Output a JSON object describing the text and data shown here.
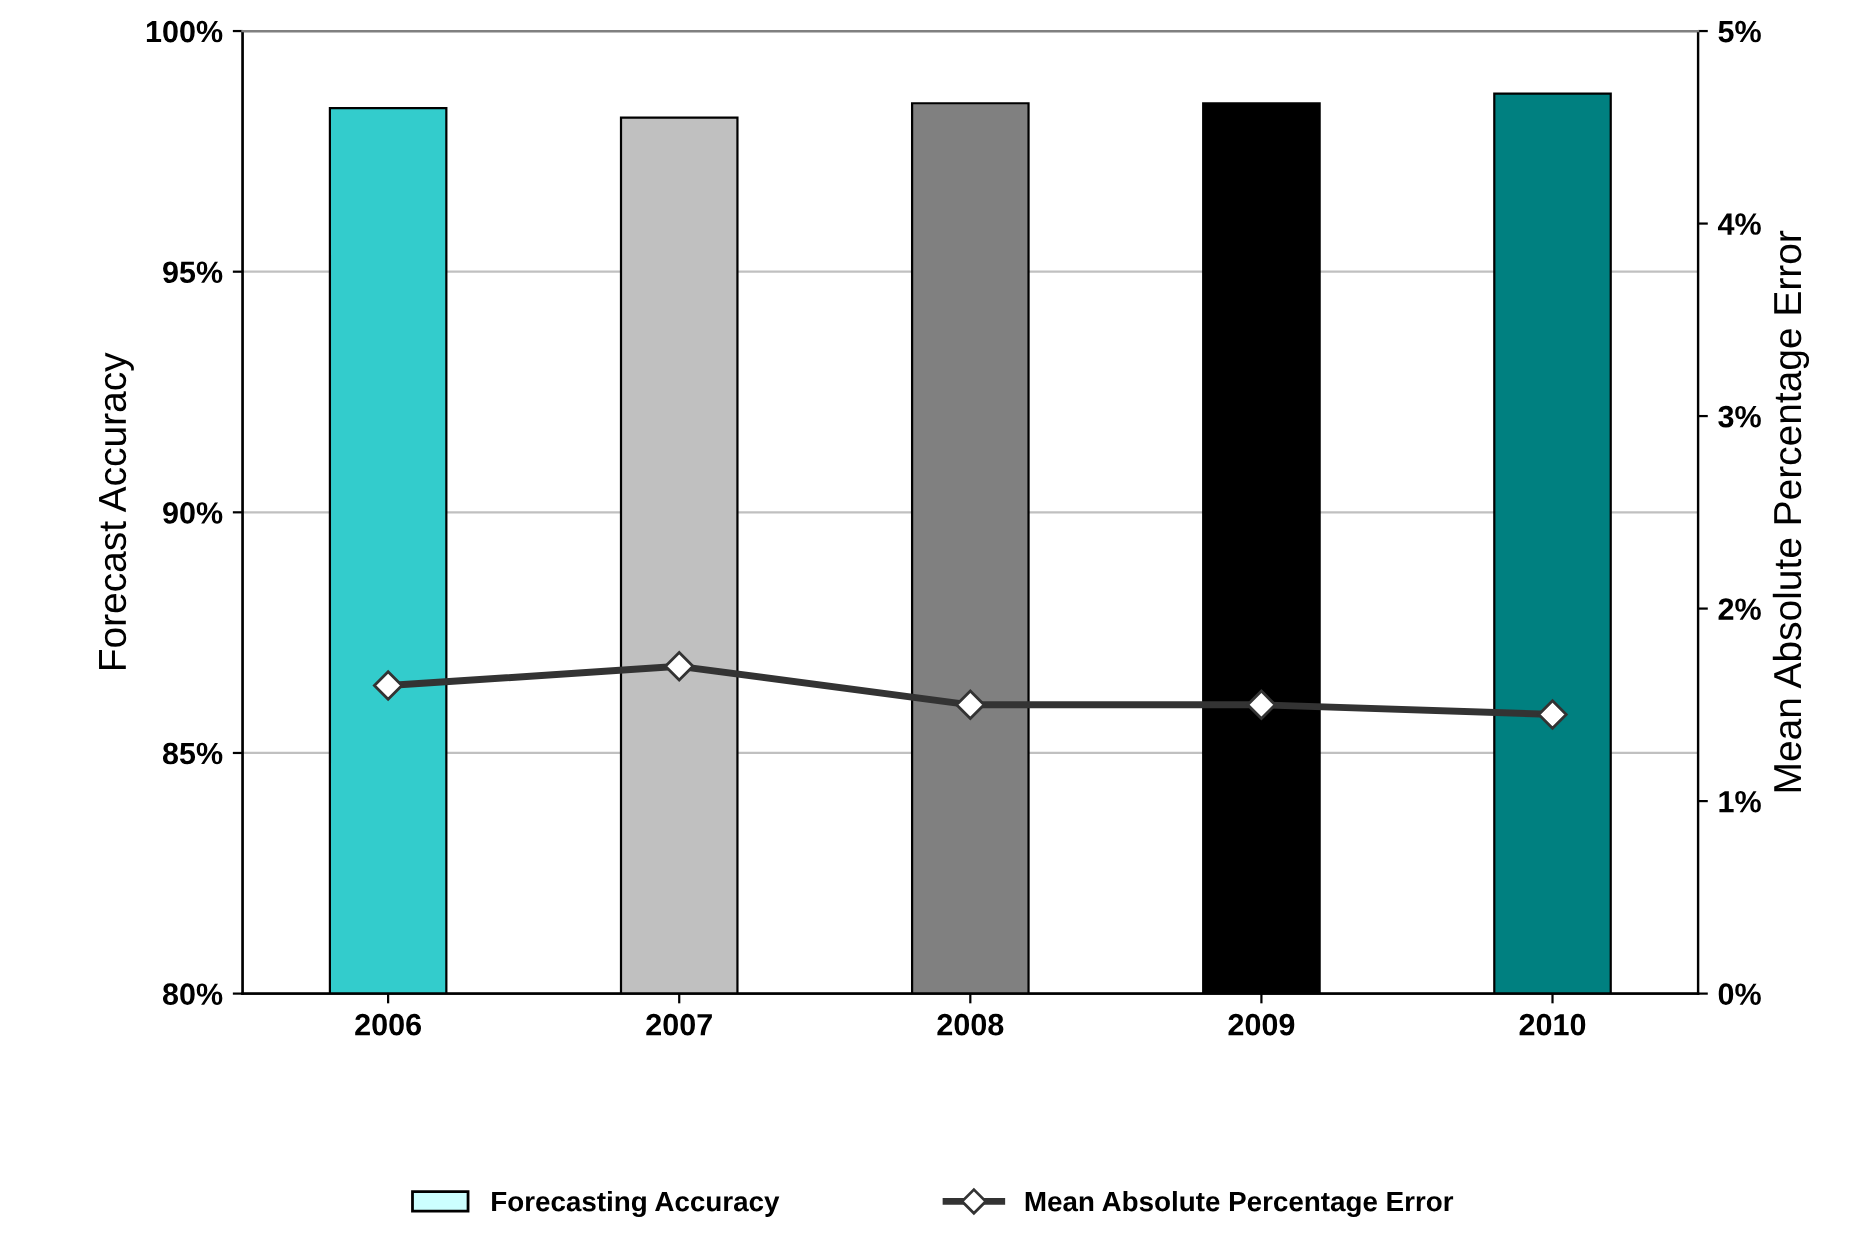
{
  "chart_data": {
    "type": "bar",
    "ylabel": "Forecast Accuracy",
    "y2label": "Mean Absolute Percentage Error",
    "categories": [
      "2006",
      "2007",
      "2008",
      "2009",
      "2010"
    ],
    "series": [
      {
        "name": "Forecasting Accuracy",
        "color": "#ccffff",
        "colors": [
          "#33cccc",
          "#c0c0c0",
          "#808080",
          "#000000",
          "#008080"
        ],
        "values": [
          98.4,
          98.2,
          98.5,
          98.5,
          98.7
        ]
      },
      {
        "name": "Mean Absolute Percentage Error",
        "type": "line",
        "axis": "y2",
        "color": "#333333",
        "marker": "diamond",
        "values": [
          1.6,
          1.7,
          1.5,
          1.5,
          1.45
        ]
      }
    ],
    "ylim": [
      80,
      100
    ],
    "yticks": [
      {
        "value": 80,
        "label": "80%"
      },
      {
        "value": 85,
        "label": "85%"
      },
      {
        "value": 90,
        "label": "90%"
      },
      {
        "value": 95,
        "label": "95%"
      },
      {
        "value": 100,
        "label": "100%"
      }
    ],
    "y2lim": [
      0,
      5
    ],
    "y2ticks": [
      {
        "value": 0,
        "label": "0%"
      },
      {
        "value": 1,
        "label": "1%"
      },
      {
        "value": 2,
        "label": "2%"
      },
      {
        "value": 3,
        "label": "3%"
      },
      {
        "value": 4,
        "label": "4%"
      },
      {
        "value": 5,
        "label": "5%"
      }
    ],
    "grid": "y",
    "legend": "bottom"
  }
}
